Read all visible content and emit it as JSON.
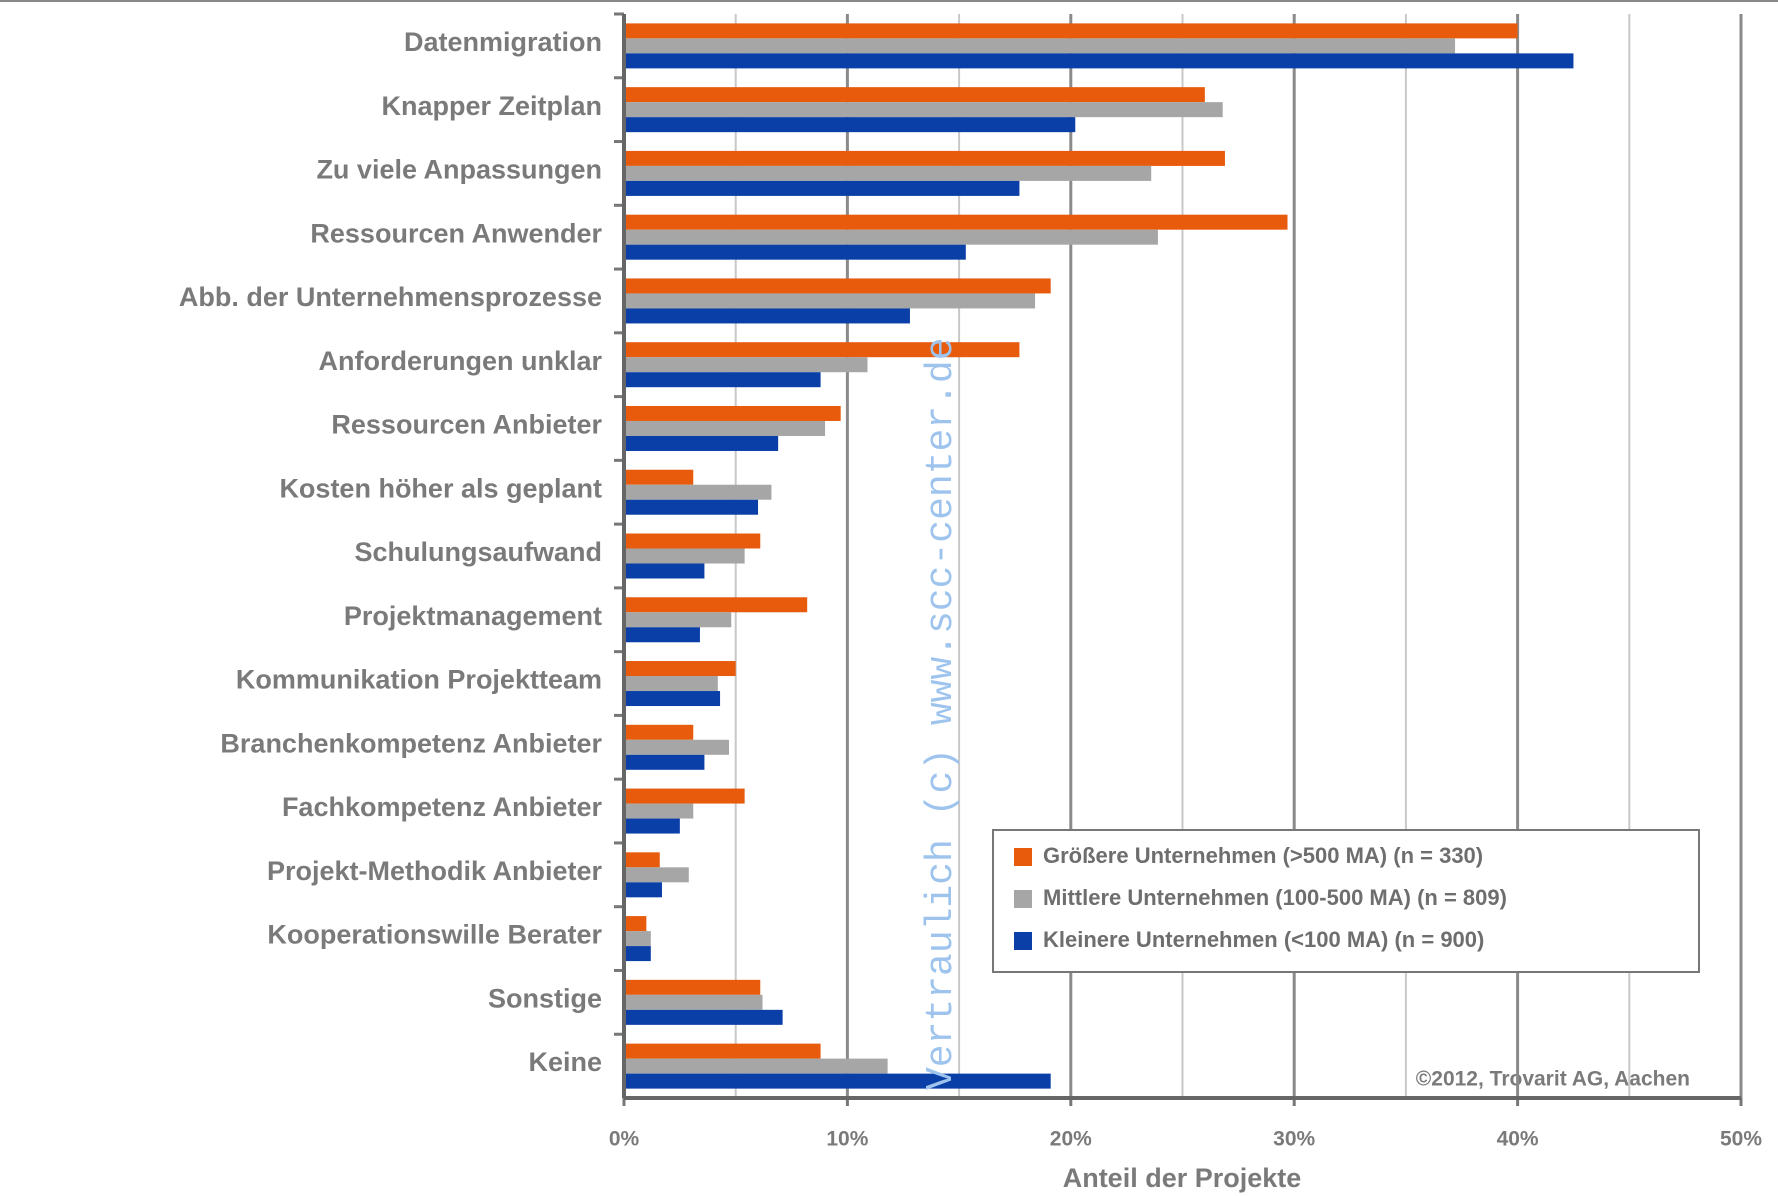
{
  "chart_data": {
    "type": "hbar",
    "categories": [
      "Datenmigration",
      "Knapper Zeitplan",
      "Zu viele Anpassungen",
      "Ressourcen Anwender",
      "Abb. der Unternehmensprozesse",
      "Anforderungen unklar",
      "Ressourcen Anbieter",
      "Kosten höher als geplant",
      "Schulungsaufwand",
      "Projektmanagement",
      "Kommunikation Projektteam",
      "Branchenkompetenz Anbieter",
      "Fachkompetenz Anbieter",
      "Projekt-Methodik Anbieter",
      "Kooperationswille Berater",
      "Sonstige",
      "Keine"
    ],
    "series": [
      {
        "name": "Größere Unternehmen (>500 MA) (n = 330)",
        "color": "#e85a0c",
        "values": [
          40,
          26,
          26.9,
          29.7,
          19.1,
          17.7,
          9.7,
          3.1,
          6.1,
          8.2,
          5.0,
          3.1,
          5.4,
          1.6,
          1.0,
          6.1,
          8.8
        ]
      },
      {
        "name": "Mittlere Unternehmen (100-500 MA) (n = 809)",
        "color": "#a6a6a6",
        "values": [
          37.2,
          26.8,
          23.6,
          23.9,
          18.4,
          10.9,
          9.0,
          6.6,
          5.4,
          4.8,
          4.2,
          4.7,
          3.1,
          2.9,
          1.2,
          6.2,
          11.8
        ]
      },
      {
        "name": "Kleinere Unternehmen (<100 MA) (n = 900)",
        "color": "#0a3fa8",
        "values": [
          42.5,
          20.2,
          17.7,
          15.3,
          12.8,
          8.8,
          6.9,
          6.0,
          3.6,
          3.4,
          4.3,
          3.6,
          2.5,
          1.7,
          1.2,
          7.1,
          19.1
        ]
      }
    ],
    "xlabel": "Anteil der Projekte",
    "xlim": [
      0,
      50
    ],
    "xticks": [
      {
        "value": 0,
        "label": "0%"
      },
      {
        "value": 10,
        "label": "10%"
      },
      {
        "value": 20,
        "label": "20%"
      },
      {
        "value": 30,
        "label": "30%"
      },
      {
        "value": 40,
        "label": "40%"
      },
      {
        "value": 50,
        "label": "50%"
      }
    ],
    "minor_xticks": [
      5,
      15,
      25,
      35,
      45
    ],
    "grid": true,
    "legend": "lower right",
    "annotations": [
      "©2012, Trovarit AG, Aachen",
      "Vertraulich (c) www.scc-center.de"
    ]
  }
}
